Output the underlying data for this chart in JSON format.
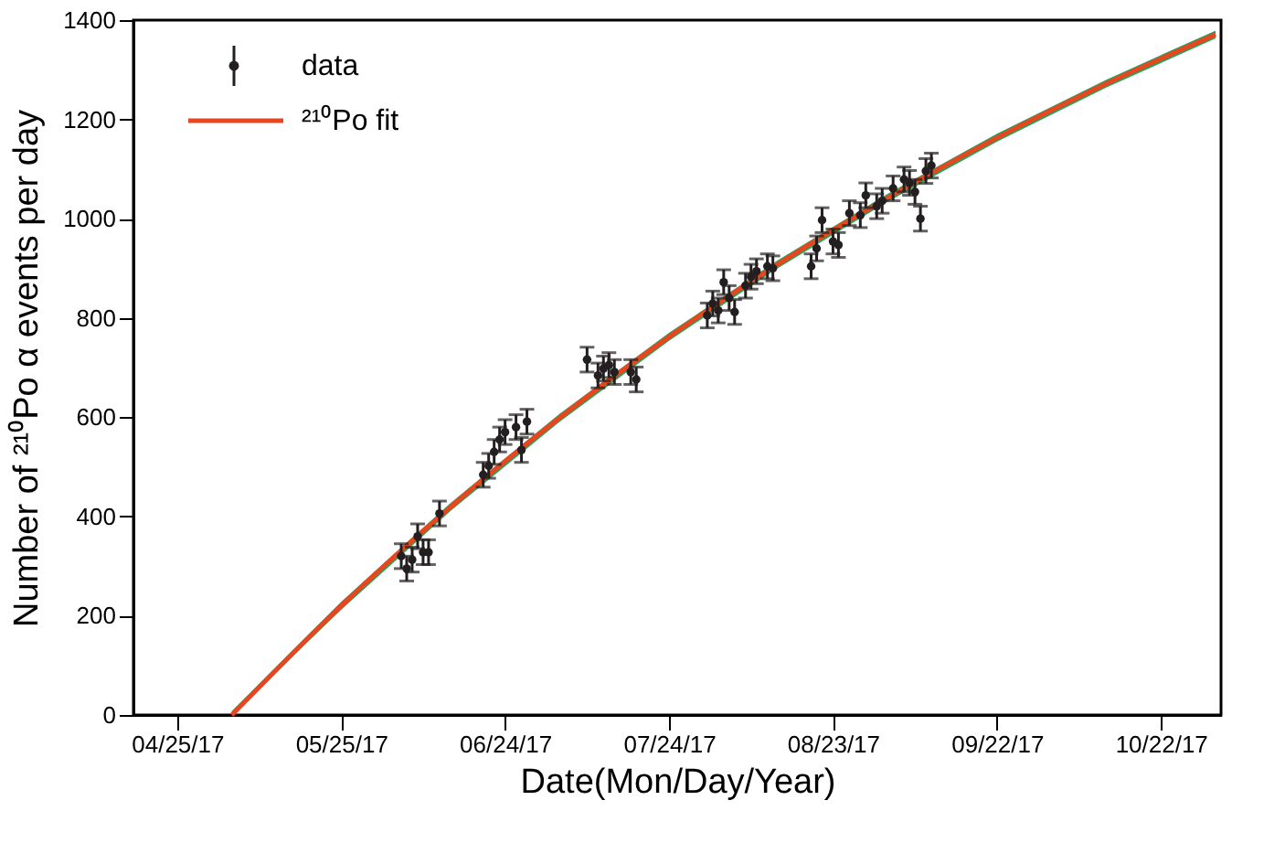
{
  "chart_data": {
    "type": "scatter",
    "xlabel": "Date(Mon/Day/Year)",
    "ylabel": "Number of ²¹⁰Po α events per day",
    "xlim": [
      "2017-04-17",
      "2017-11-02"
    ],
    "xticks": [
      {
        "value": "2017-04-25",
        "label": "04/25/17"
      },
      {
        "value": "2017-05-25",
        "label": "05/25/17"
      },
      {
        "value": "2017-06-24",
        "label": "06/24/17"
      },
      {
        "value": "2017-07-24",
        "label": "07/24/17"
      },
      {
        "value": "2017-08-23",
        "label": "08/23/17"
      },
      {
        "value": "2017-09-22",
        "label": "09/22/17"
      },
      {
        "value": "2017-10-22",
        "label": "10/22/17"
      }
    ],
    "ylim": [
      0,
      1400
    ],
    "yticks": [
      0,
      200,
      400,
      600,
      800,
      1000,
      1200,
      1400
    ],
    "grid": false,
    "legend": "top left",
    "series": [
      {
        "name": "data",
        "marker": "circle",
        "color": "#231f20",
        "x": [
          "2017-06-05",
          "2017-06-06",
          "2017-06-07",
          "2017-06-08",
          "2017-06-09",
          "2017-06-10",
          "2017-06-12",
          "2017-06-20",
          "2017-06-21",
          "2017-06-22",
          "2017-06-23",
          "2017-06-24",
          "2017-06-26",
          "2017-06-27",
          "2017-06-28",
          "2017-07-09",
          "2017-07-11",
          "2017-07-12",
          "2017-07-13",
          "2017-07-14",
          "2017-07-17",
          "2017-07-18",
          "2017-07-31",
          "2017-08-01",
          "2017-08-02",
          "2017-08-03",
          "2017-08-04",
          "2017-08-05",
          "2017-08-07",
          "2017-08-08",
          "2017-08-09",
          "2017-08-11",
          "2017-08-12",
          "2017-08-19",
          "2017-08-20",
          "2017-08-21",
          "2017-08-23",
          "2017-08-24",
          "2017-08-26",
          "2017-08-28",
          "2017-08-29",
          "2017-08-31",
          "2017-09-01",
          "2017-09-03",
          "2017-09-05",
          "2017-09-06",
          "2017-09-07",
          "2017-09-08",
          "2017-09-09",
          "2017-09-10"
        ],
        "values": [
          320,
          295,
          313,
          360,
          328,
          328,
          406,
          484,
          502,
          530,
          555,
          570,
          580,
          534,
          591,
          716,
          684,
          698,
          705,
          691,
          691,
          676,
          805,
          829,
          815,
          872,
          840,
          812,
          865,
          883,
          894,
          904,
          900,
          904,
          940,
          997,
          954,
          947,
          1011,
          1007,
          1047,
          1025,
          1036,
          1061,
          1079,
          1072,
          1054,
          1000,
          1096,
          1107
        ],
        "errors": [
          25,
          25,
          25,
          25,
          25,
          25,
          25,
          25,
          25,
          25,
          25,
          25,
          25,
          25,
          25,
          25,
          25,
          25,
          25,
          25,
          25,
          25,
          25,
          25,
          25,
          25,
          25,
          25,
          25,
          25,
          25,
          25,
          25,
          25,
          25,
          25,
          25,
          25,
          25,
          25,
          25,
          25,
          25,
          25,
          25,
          25,
          25,
          25,
          25,
          25
        ]
      },
      {
        "name": "²¹⁰Po fit",
        "type": "line",
        "color": "#e8461e",
        "x": [
          "2017-05-05",
          "2017-05-25",
          "2017-06-14",
          "2017-07-04",
          "2017-07-24",
          "2017-08-13",
          "2017-09-02",
          "2017-09-22",
          "2017-10-12",
          "2017-11-01"
        ],
        "values": [
          0,
          220,
          419,
          599,
          762,
          909,
          1042,
          1163,
          1272,
          1371
        ],
        "lower": [
          0,
          212,
          411,
          591,
          754,
          901,
          1034,
          1155,
          1264,
          1363
        ],
        "upper": [
          8,
          228,
          427,
          607,
          770,
          917,
          1050,
          1171,
          1280,
          1379
        ]
      }
    ]
  }
}
